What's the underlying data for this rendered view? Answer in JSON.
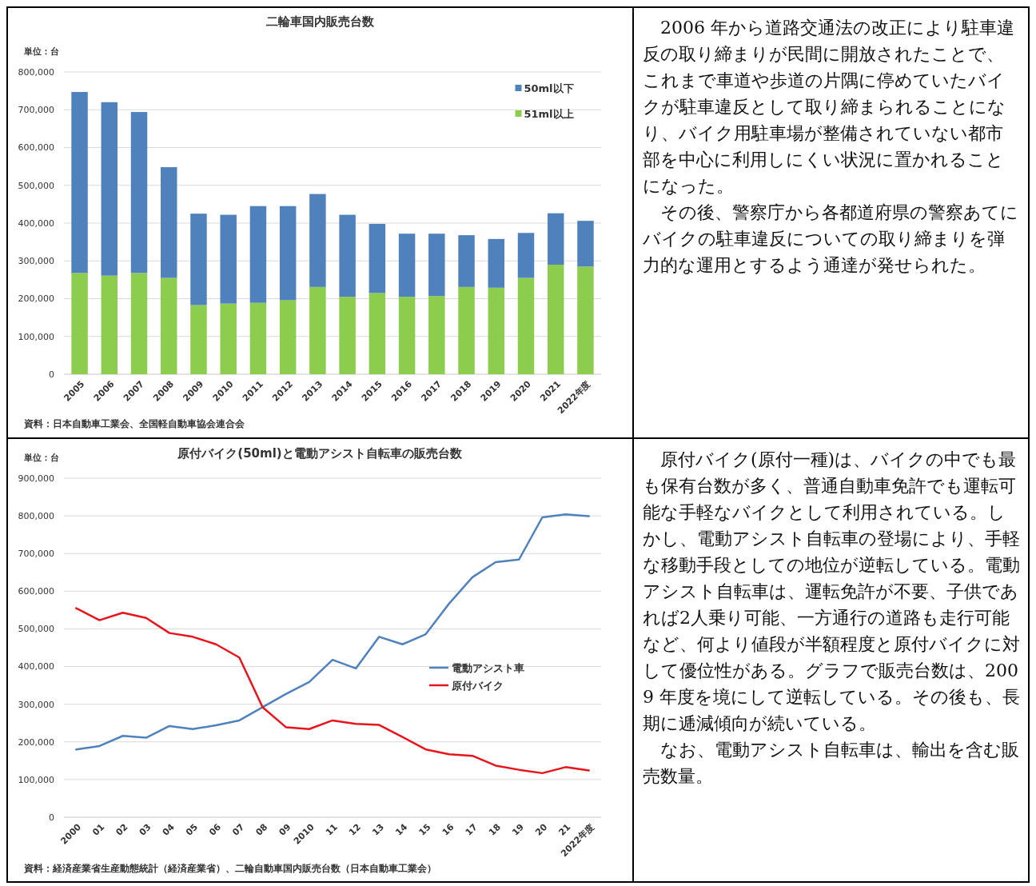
{
  "chart_data": [
    {
      "type": "bar",
      "title": "二輪車国内販売台数",
      "ylabel": "単位：台",
      "stacked": true,
      "legend": "top right",
      "grid": "y",
      "categories": [
        "2005",
        "2006",
        "2007",
        "2008",
        "2009",
        "2010",
        "2011",
        "2012",
        "2013",
        "2014",
        "2015",
        "2016",
        "2017",
        "2018",
        "2019",
        "2020",
        "2021",
        "2022年度"
      ],
      "series": [
        {
          "name": "51ml以上",
          "color": "#8ccd4e",
          "values": [
            268000,
            261000,
            268000,
            255000,
            183000,
            187000,
            189000,
            196000,
            231000,
            205000,
            215000,
            205000,
            207000,
            231000,
            229000,
            255000,
            290000,
            285000
          ]
        },
        {
          "name": "50ml以下",
          "color": "#4f81bd",
          "values": [
            479000,
            459000,
            426000,
            293000,
            242000,
            235000,
            256000,
            249000,
            246000,
            217000,
            183000,
            167000,
            165000,
            137000,
            129000,
            119000,
            136000,
            121000
          ]
        }
      ],
      "ylim": [
        0,
        800000
      ],
      "yticks": [
        0,
        {
          "value": 100000,
          "label": "100,000"
        },
        {
          "value": 200000,
          "label": "200,000"
        },
        {
          "value": 300000,
          "label": "300,000"
        },
        {
          "value": 400000,
          "label": "400,000"
        },
        {
          "value": 500000,
          "label": "500,000"
        },
        {
          "value": 600000,
          "label": "600,000"
        },
        {
          "value": 700000,
          "label": "700,000"
        },
        {
          "value": 800000,
          "label": "800,000"
        }
      ],
      "annotations": [
        "資料：日本自動車工業会、全国軽自動車協会連合会"
      ]
    },
    {
      "type": "other",
      "annotations": [
        "2006 年から道路交通法の改正により駐車違反の取り締まりが民間に開放されたことで、これまで車道や歩道の片隅に停めていたバイクが駐車違反として取り締まられることになり、バイク用駐車場が整備されていない都市部を中心に利用しにくい状況に置かれることになった。",
        "その後、警察庁から各都道府県の警察あてにバイクの駐車違反についての取り締まりを弾力的な運用とするよう通達が発せられた。"
      ]
    },
    {
      "type": "line",
      "title": "原付バイク(50ml)と電動アシスト自転車の販売台数",
      "ylabel": "単位：台",
      "legend": "right",
      "grid": "y",
      "marker": "none",
      "line_style": "solid",
      "categories": [
        "2000",
        "01",
        "02",
        "03",
        "04",
        "05",
        "06",
        "07",
        "08",
        "09",
        "2010",
        "11",
        "12",
        "13",
        "14",
        "15",
        "16",
        "17",
        "18",
        "19",
        "20",
        "21",
        "2022年度"
      ],
      "series": [
        {
          "name": "電動アシスト車",
          "color": "#4f81bd",
          "values": [
            180000,
            189000,
            216000,
            211000,
            242000,
            234000,
            244000,
            257000,
            292000,
            327000,
            359000,
            418000,
            395000,
            479000,
            459000,
            486000,
            567000,
            637000,
            677000,
            684000,
            796000,
            804000,
            799000
          ]
        },
        {
          "name": "原付バイク",
          "color": "#e8141c",
          "values": [
            555000,
            523000,
            543000,
            529000,
            489000,
            479000,
            459000,
            424000,
            292000,
            239000,
            234000,
            257000,
            248000,
            245000,
            213000,
            180000,
            167000,
            163000,
            137000,
            126000,
            117000,
            133000,
            124000
          ]
        }
      ],
      "ylim": [
        0,
        900000
      ],
      "yticks": [
        0,
        {
          "value": 100000,
          "label": "100,000"
        },
        {
          "value": 200000,
          "label": "200,000"
        },
        {
          "value": 300000,
          "label": "300,000"
        },
        {
          "value": 400000,
          "label": "400,000"
        },
        {
          "value": 500000,
          "label": "500,000"
        },
        {
          "value": 600000,
          "label": "600,000"
        },
        {
          "value": 700000,
          "label": "700,000"
        },
        {
          "value": 800000,
          "label": "800,000"
        },
        {
          "value": 900000,
          "label": "900,000"
        }
      ],
      "annotations": [
        "資料：経済産業省生産動態統計（経済産業省）、二輪自動車国内販売台数（日本自動車工業会）"
      ]
    },
    {
      "type": "other",
      "annotations": [
        "原付バイク(原付一種)は、バイクの中でも最も保有台数が多く、普通自動車免許でも運転可能な手軽なバイクとして利用されている。しかし、電動アシスト自転車の登場により、手軽な移動手段としての地位が逆転している。電動アシスト自転車は、運転免許が不要、子供であれば2人乗り可能、一方通行の道路も走行可能など、何より値段が半額程度と原付バイクに対して優位性がある。グラフで販売台数は、2009 年度を境にして逆転している。その後も、長期に逓減傾向が続いている。",
        "なお、電動アシスト自転車は、輸出を含む販売数量。"
      ]
    }
  ]
}
